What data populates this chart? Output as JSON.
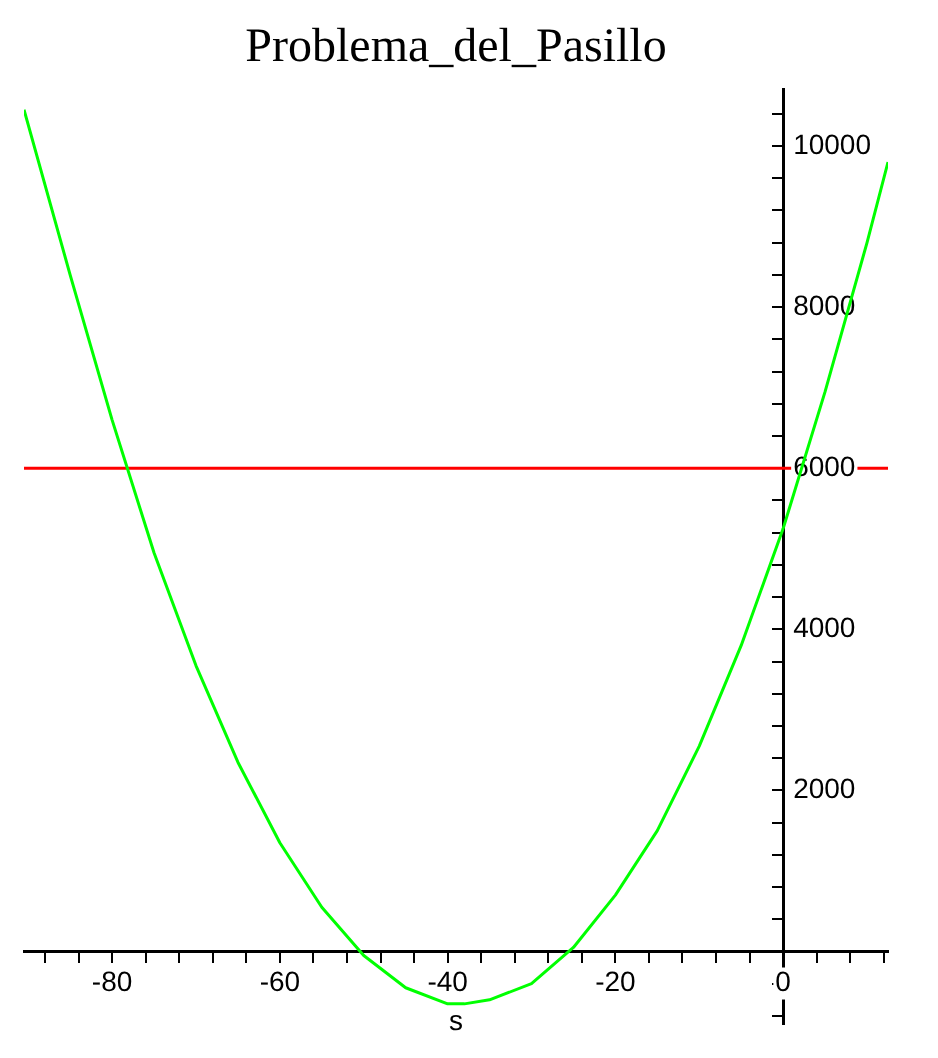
{
  "chart_data": {
    "type": "line",
    "title": "Problema_del_Pasillo",
    "xlabel": "s",
    "series": [
      {
        "color": "#00ff00",
        "x": [
          -90.5,
          -85,
          -80,
          -75,
          -70,
          -65,
          -60,
          -55,
          -50,
          -45,
          -40,
          -38,
          -35,
          -30,
          -25,
          -20,
          -15,
          -10,
          -5,
          0,
          5,
          10,
          12.5
        ],
        "values": [
          10450,
          8400,
          6600,
          4950,
          3550,
          2350,
          1350,
          550,
          -50,
          -450,
          -650,
          -650,
          -600,
          -400,
          50,
          700,
          1500,
          2550,
          3800,
          5250,
          6950,
          8800,
          9800
        ]
      }
    ],
    "xlim": [
      -90.5,
      12.5
    ],
    "ylim": [
      -900,
      10700
    ],
    "xticks": [
      {
        "value": -88,
        "label": null
      },
      {
        "value": -84,
        "label": null
      },
      -80,
      {
        "value": -76,
        "label": null
      },
      {
        "value": -72,
        "label": null
      },
      {
        "value": -68,
        "label": null
      },
      {
        "value": -64,
        "label": null
      },
      -60,
      {
        "value": -56,
        "label": null
      },
      {
        "value": -52,
        "label": null
      },
      {
        "value": -48,
        "label": null
      },
      {
        "value": -44,
        "label": null
      },
      -40,
      {
        "value": -36,
        "label": null
      },
      {
        "value": -32,
        "label": null
      },
      {
        "value": -28,
        "label": null
      },
      {
        "value": -24,
        "label": null
      },
      -20,
      {
        "value": -16,
        "label": null
      },
      {
        "value": -12,
        "label": null
      },
      {
        "value": -8,
        "label": null
      },
      {
        "value": -4,
        "label": null
      },
      0,
      {
        "value": 4,
        "label": null
      },
      {
        "value": 8,
        "label": null
      },
      {
        "value": 12,
        "label": null
      }
    ],
    "yticks": [
      {
        "value": -800,
        "label": null
      },
      {
        "value": -400,
        "label": null
      },
      {
        "value": 400,
        "label": null
      },
      {
        "value": 800,
        "label": null
      },
      {
        "value": 1200,
        "label": null
      },
      {
        "value": 1600,
        "label": null
      },
      2000,
      {
        "value": 2400,
        "label": null
      },
      {
        "value": 2800,
        "label": null
      },
      {
        "value": 3200,
        "label": null
      },
      {
        "value": 3600,
        "label": null
      },
      4000,
      {
        "value": 4400,
        "label": null
      },
      {
        "value": 4800,
        "label": null
      },
      {
        "value": 5200,
        "label": null
      },
      {
        "value": 5600,
        "label": null
      },
      6000,
      {
        "value": 6400,
        "label": null
      },
      {
        "value": 6800,
        "label": null
      },
      {
        "value": 7200,
        "label": null
      },
      {
        "value": 7600,
        "label": null
      },
      8000,
      {
        "value": 8400,
        "label": null
      },
      {
        "value": 8800,
        "label": null
      },
      {
        "value": 9200,
        "label": null
      },
      {
        "value": 9600,
        "label": null
      },
      10000,
      {
        "value": 10400,
        "label": null
      }
    ],
    "ref_lines": [
      {
        "axis": "y",
        "value": 6000,
        "color": "#ff0000"
      }
    ],
    "grid": false,
    "legend": false,
    "marker": "none",
    "line_style": "solid"
  }
}
